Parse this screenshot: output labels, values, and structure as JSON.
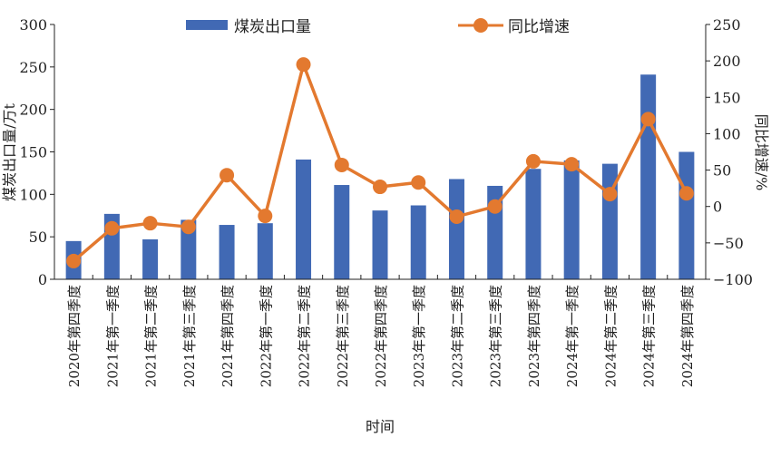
{
  "chart_data": {
    "type": "bar+line",
    "categories": [
      "2020年第四季度",
      "2021年第一季度",
      "2021年第二季度",
      "2021年第三季度",
      "2021年第四季度",
      "2022年第一季度",
      "2022年第二季度",
      "2022年第三季度",
      "2022年第四季度",
      "2023年第一季度",
      "2023年第二季度",
      "2023年第三季度",
      "2023年第四季度",
      "2024年第一季度",
      "2024年第二季度",
      "2024年第三季度",
      "2024年第四季度"
    ],
    "series": [
      {
        "name": "煤炭出口量",
        "type": "bar",
        "axis": "left",
        "color": "#4169b4",
        "values": [
          45,
          77,
          47,
          70,
          64,
          66,
          141,
          111,
          81,
          87,
          118,
          110,
          130,
          140,
          136,
          241,
          150
        ]
      },
      {
        "name": "同比增速",
        "type": "line",
        "axis": "right",
        "color": "#e3792f",
        "values": [
          -75,
          -30,
          -23,
          -28,
          43,
          -13,
          195,
          57,
          27,
          33,
          -14,
          0,
          62,
          58,
          17,
          120,
          18
        ]
      }
    ],
    "xlabel": "时间",
    "ylabel": "煤炭出口量/万t",
    "y2label": "同比增速/%",
    "ylim": [
      0,
      300
    ],
    "yticks": [
      0,
      50,
      100,
      150,
      200,
      250,
      300
    ],
    "y2lim": [
      -100,
      250
    ],
    "y2ticks": [
      -100,
      -50,
      0,
      50,
      100,
      150,
      200,
      250
    ],
    "grid": false,
    "legend": "top"
  }
}
